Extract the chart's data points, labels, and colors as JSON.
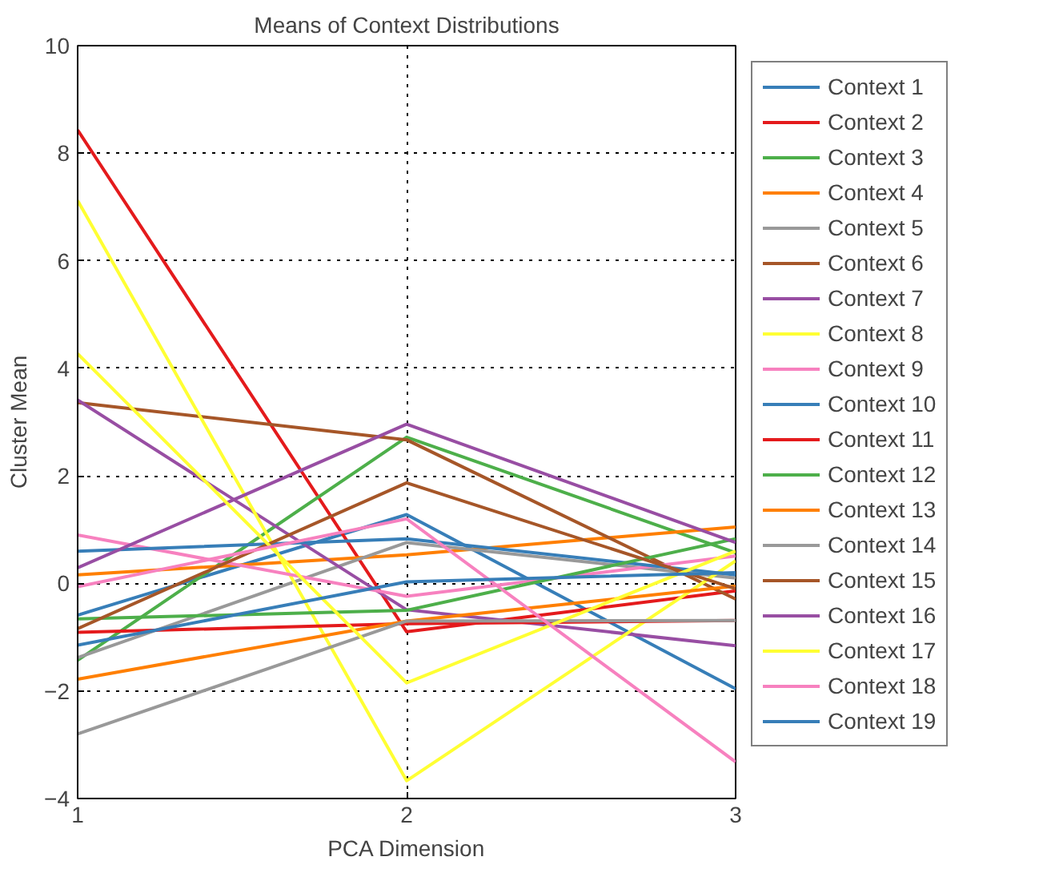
{
  "chart_data": {
    "type": "line",
    "title": "Means of Context Distributions",
    "xlabel": "PCA Dimension",
    "ylabel": "Cluster Mean",
    "x": [
      1,
      2,
      3
    ],
    "xlim": [
      1,
      3
    ],
    "xticks": [
      1,
      2,
      3
    ],
    "ylim": [
      -4,
      10
    ],
    "yticks": [
      -4,
      -2,
      0,
      2,
      4,
      6,
      8,
      10
    ],
    "grid": true,
    "legend": "right",
    "line_style": "solid",
    "marker": "none",
    "series": [
      {
        "name": "Context 1",
        "color": "#377eb8",
        "values": [
          -0.59,
          1.28,
          -1.96
        ]
      },
      {
        "name": "Context 2",
        "color": "#e41a1c",
        "values": [
          8.43,
          -0.9,
          -0.14
        ]
      },
      {
        "name": "Context 3",
        "color": "#4daf4a",
        "values": [
          -1.43,
          2.72,
          0.57
        ]
      },
      {
        "name": "Context 4",
        "color": "#ff7f00",
        "values": [
          0.16,
          0.53,
          1.05
        ]
      },
      {
        "name": "Context 5",
        "color": "#999999",
        "values": [
          -1.38,
          0.76,
          0.1
        ]
      },
      {
        "name": "Context 6",
        "color": "#a65628",
        "values": [
          3.36,
          2.67,
          -0.29
        ]
      },
      {
        "name": "Context 7",
        "color": "#984ea3",
        "values": [
          3.41,
          -0.49,
          -1.16
        ]
      },
      {
        "name": "Context 8",
        "color": "#ffff33",
        "values": [
          7.12,
          -3.67,
          0.42
        ]
      },
      {
        "name": "Context 9",
        "color": "#f781bf",
        "values": [
          0.9,
          -0.24,
          0.51
        ]
      },
      {
        "name": "Context 10",
        "color": "#377eb8",
        "values": [
          0.6,
          0.83,
          0.16
        ]
      },
      {
        "name": "Context 11",
        "color": "#e41a1c",
        "values": [
          -0.91,
          -0.75,
          -0.69
        ]
      },
      {
        "name": "Context 12",
        "color": "#4daf4a",
        "values": [
          -0.66,
          -0.5,
          0.83
        ]
      },
      {
        "name": "Context 13",
        "color": "#ff7f00",
        "values": [
          -1.78,
          -0.7,
          -0.05
        ]
      },
      {
        "name": "Context 14",
        "color": "#999999",
        "values": [
          -2.8,
          -0.7,
          -0.69
        ]
      },
      {
        "name": "Context 15",
        "color": "#a65628",
        "values": [
          -0.84,
          1.87,
          -0.1
        ]
      },
      {
        "name": "Context 16",
        "color": "#984ea3",
        "values": [
          0.29,
          2.96,
          0.76
        ]
      },
      {
        "name": "Context 17",
        "color": "#ffff33",
        "values": [
          4.27,
          -1.85,
          0.6
        ]
      },
      {
        "name": "Context 18",
        "color": "#f781bf",
        "values": [
          -0.06,
          1.2,
          -3.32
        ]
      },
      {
        "name": "Context 19",
        "color": "#377eb8",
        "values": [
          -1.15,
          0.03,
          0.2
        ]
      }
    ]
  }
}
